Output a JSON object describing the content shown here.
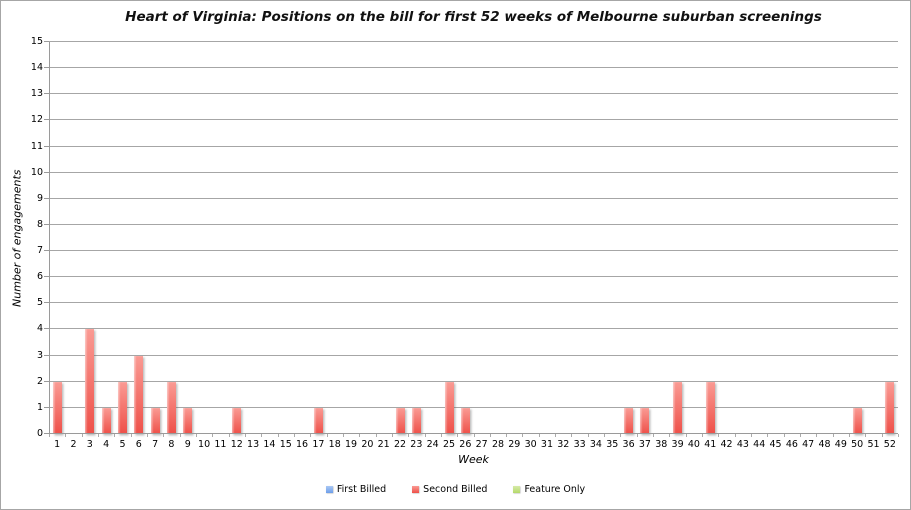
{
  "chart_data": {
    "type": "bar",
    "title": "Heart of Virginia: Positions on the bill for first 52 weeks of Melbourne suburban screenings",
    "xlabel": "Week",
    "ylabel": "Number of engagements",
    "x": [
      1,
      2,
      3,
      4,
      5,
      6,
      7,
      8,
      9,
      10,
      11,
      12,
      13,
      14,
      15,
      16,
      17,
      18,
      19,
      20,
      21,
      22,
      23,
      24,
      25,
      26,
      27,
      28,
      29,
      30,
      31,
      32,
      33,
      34,
      35,
      36,
      37,
      38,
      39,
      40,
      41,
      42,
      43,
      44,
      45,
      46,
      47,
      48,
      49,
      50,
      51,
      52
    ],
    "series": [
      {
        "name": "First Billed",
        "color": "#6d9eea",
        "color_light": "#aac8f4",
        "values": [
          0,
          0,
          0,
          0,
          0,
          0,
          0,
          0,
          0,
          0,
          0,
          0,
          0,
          0,
          0,
          0,
          0,
          0,
          0,
          0,
          0,
          0,
          0,
          0,
          0,
          0,
          0,
          0,
          0,
          0,
          0,
          0,
          0,
          0,
          0,
          0,
          0,
          0,
          0,
          0,
          0,
          0,
          0,
          0,
          0,
          0,
          0,
          0,
          0,
          0,
          0,
          0
        ]
      },
      {
        "name": "Second Billed",
        "color": "#ee5049",
        "color_light": "#fa9a93",
        "values": [
          2,
          0,
          4,
          1,
          2,
          3,
          1,
          2,
          1,
          0,
          0,
          1,
          0,
          0,
          0,
          0,
          1,
          0,
          0,
          0,
          0,
          1,
          1,
          0,
          2,
          1,
          0,
          0,
          0,
          0,
          0,
          0,
          0,
          0,
          0,
          1,
          1,
          0,
          2,
          0,
          2,
          0,
          0,
          0,
          0,
          0,
          0,
          0,
          0,
          1,
          0,
          2
        ]
      },
      {
        "name": "Feature Only",
        "color": "#b5d96a",
        "color_light": "#d6eaa8",
        "values": [
          0,
          0,
          0,
          0,
          0,
          0,
          0,
          0,
          0,
          0,
          0,
          0,
          0,
          0,
          0,
          0,
          0,
          0,
          0,
          0,
          0,
          0,
          0,
          0,
          0,
          0,
          0,
          0,
          0,
          0,
          0,
          0,
          0,
          0,
          0,
          0,
          0,
          0,
          0,
          0,
          0,
          0,
          0,
          0,
          0,
          0,
          0,
          0,
          0,
          0,
          0,
          0
        ]
      }
    ],
    "ylim": [
      0,
      15
    ],
    "ytick_step": 1,
    "grid": true,
    "legend_position": "bottom",
    "gridline_color": "#a6a6a6",
    "axis_color": "#9a9a9a"
  }
}
